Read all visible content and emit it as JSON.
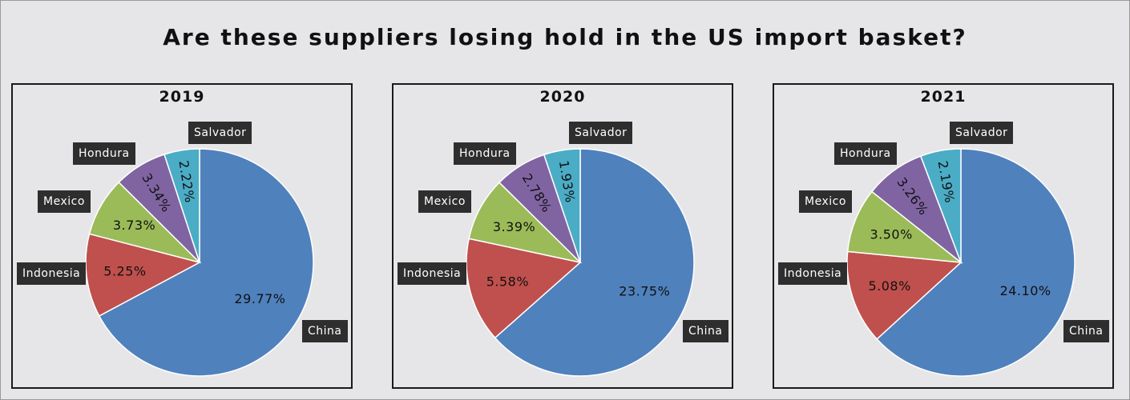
{
  "title": "Are these suppliers losing hold in the US import basket?",
  "colors": {
    "China": "#4f81bd",
    "Indonesia": "#c0504d",
    "Mexico": "#9bbb59",
    "Hondura": "#8064a2",
    "Salvador": "#4bacc6"
  },
  "chart_data": [
    {
      "type": "pie",
      "title": "2019",
      "categories": [
        "Salvador",
        "Hondura",
        "Mexico",
        "Indonesia",
        "China"
      ],
      "values": [
        2.22,
        3.34,
        3.73,
        5.25,
        29.77
      ],
      "labels": [
        "2.22%",
        "3.34%",
        "3.73%",
        "5.25%",
        "29.77%"
      ]
    },
    {
      "type": "pie",
      "title": "2020",
      "categories": [
        "Salvador",
        "Hondura",
        "Mexico",
        "Indonesia",
        "China"
      ],
      "values": [
        1.93,
        2.78,
        3.39,
        5.58,
        23.75
      ],
      "labels": [
        "1.93%",
        "2.78%",
        "3.39%",
        "5.58%",
        "23.75%"
      ]
    },
    {
      "type": "pie",
      "title": "2021",
      "categories": [
        "Salvador",
        "Hondura",
        "Mexico",
        "Indonesia",
        "China"
      ],
      "values": [
        2.19,
        3.26,
        3.5,
        5.08,
        24.1
      ],
      "labels": [
        "2.19%",
        "3.26%",
        "3.50%",
        "5.08%",
        "24.10%"
      ]
    }
  ]
}
